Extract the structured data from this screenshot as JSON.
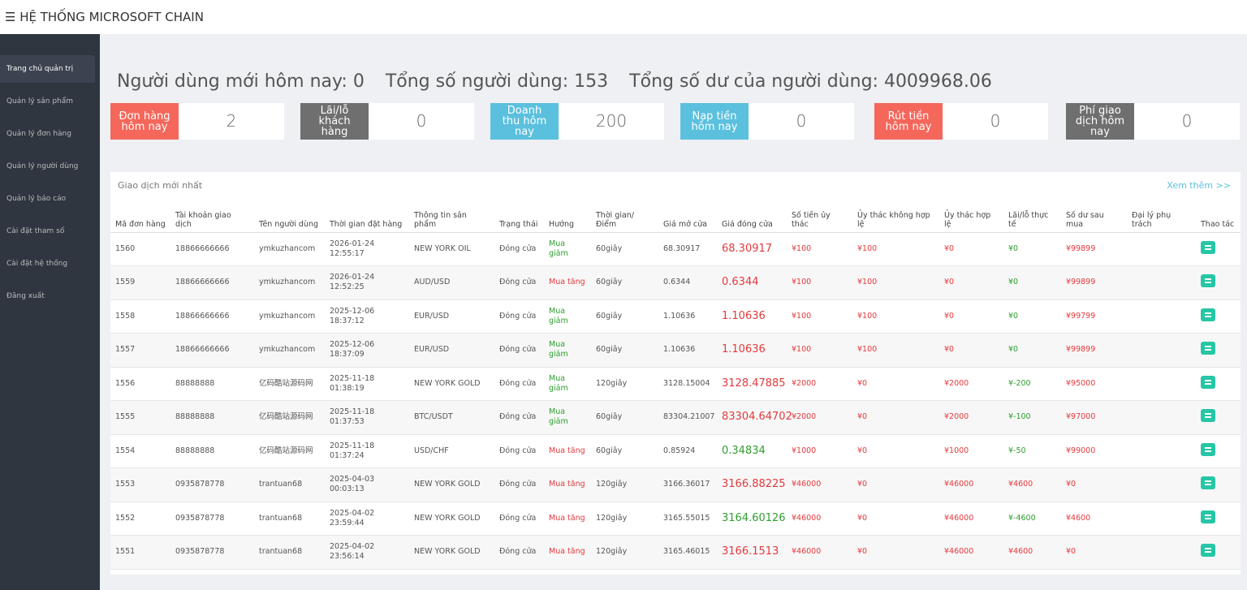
{
  "header": {
    "title": "HỆ THỐNG MICROSOFT CHAIN"
  },
  "sidebar": {
    "items": [
      "Trang chủ quản trị",
      "Quản lý sản phẩm",
      "Quản lý đơn hàng",
      "Quản lý người dùng",
      "Quản lý báo cáo",
      "Cài đặt tham số",
      "Cài đặt hệ thống",
      "Đăng xuất"
    ]
  },
  "stats": [
    "Người dùng mới hôm nay: 0",
    "Tổng số người dùng: 153",
    "Tổng số dư của người dùng: 4009968.06"
  ],
  "cards": [
    {
      "label": "Đơn hàng hôm nay",
      "value": "2",
      "color": "#f5675b"
    },
    {
      "label": "Lãi/lỗ khách hàng",
      "value": "0",
      "color": "#6f6f6f"
    },
    {
      "label": "Doanh thu hôm nay",
      "value": "200",
      "color": "#5bc0de"
    },
    {
      "label": "Nạp tiền hôm nay",
      "value": "0",
      "color": "#5bc0de"
    },
    {
      "label": "Rút tiền hôm nay",
      "value": "0",
      "color": "#f5675b"
    },
    {
      "label": "Phí giao dịch hôm nay",
      "value": "0",
      "color": "#6f6f6f"
    }
  ],
  "table": {
    "title": "Giao dịch mới nhất",
    "more": "Xem thêm >>",
    "headers": [
      "Mã đơn hàng",
      "Tài khoản giao dịch",
      "Tên người dùng",
      "Thời gian đặt hàng",
      "Thông tin sản phẩm",
      "Trạng thái",
      "Hướng",
      "Thời gian/ Điểm",
      "Giá mở cửa",
      "Giá đóng cửa",
      "Số tiền ủy thác",
      "Ủy thác không hợp lệ",
      "Ủy thác hợp lệ",
      "Lãi/lỗ thực tế",
      "Số dư sau mua",
      "Đại lý phụ trách",
      "Thao tác"
    ],
    "rows": [
      {
        "cells": [
          "1560",
          "18866666666",
          "ymkuzhancom",
          "2026-01-24 12:55:17",
          "NEW YORK OIL",
          "Đóng cửa",
          "Mua giảm",
          "60giây",
          "68.30917",
          "68.30917",
          "¥100",
          "¥100",
          "¥0",
          "¥0",
          "¥99899"
        ],
        "direction_color": "#2e9e2e",
        "close_color": "#e4393c",
        "pnl_color": "#2e9e2e"
      },
      {
        "cells": [
          "1559",
          "18866666666",
          "ymkuzhancom",
          "2026-01-24 12:52:25",
          "AUD/USD",
          "Đóng cửa",
          "Mua tăng",
          "60giây",
          "0.6344",
          "0.6344",
          "¥100",
          "¥100",
          "¥0",
          "¥0",
          "¥99899"
        ],
        "direction_color": "#e4393c",
        "close_color": "#e4393c",
        "pnl_color": "#2e9e2e"
      },
      {
        "cells": [
          "1558",
          "18866666666",
          "ymkuzhancom",
          "2025-12-06 18:37:12",
          "EUR/USD",
          "Đóng cửa",
          "Mua giảm",
          "60giây",
          "1.10636",
          "1.10636",
          "¥100",
          "¥100",
          "¥0",
          "¥0",
          "¥99799"
        ],
        "direction_color": "#2e9e2e",
        "close_color": "#e4393c",
        "pnl_color": "#2e9e2e"
      },
      {
        "cells": [
          "1557",
          "18866666666",
          "ymkuzhancom",
          "2025-12-06 18:37:09",
          "EUR/USD",
          "Đóng cửa",
          "Mua giảm",
          "60giây",
          "1.10636",
          "1.10636",
          "¥100",
          "¥100",
          "¥0",
          "¥0",
          "¥99899"
        ],
        "direction_color": "#2e9e2e",
        "close_color": "#e4393c",
        "pnl_color": "#2e9e2e"
      },
      {
        "cells": [
          "1556",
          "88888888",
          "亿码酷站源码网",
          "2025-11-18 01:38:19",
          "NEW YORK GOLD",
          "Đóng cửa",
          "Mua giảm",
          "120giây",
          "3128.15004",
          "3128.47885",
          "¥2000",
          "¥0",
          "¥2000",
          "¥-200",
          "¥95000"
        ],
        "direction_color": "#2e9e2e",
        "close_color": "#e4393c",
        "pnl_color": "#2e9e2e"
      },
      {
        "cells": [
          "1555",
          "88888888",
          "亿码酷站源码网",
          "2025-11-18 01:37:53",
          "BTC/USDT",
          "Đóng cửa",
          "Mua giảm",
          "60giây",
          "83304.21007",
          "83304.64702",
          "¥2000",
          "¥0",
          "¥2000",
          "¥-100",
          "¥97000"
        ],
        "direction_color": "#2e9e2e",
        "close_color": "#e4393c",
        "pnl_color": "#2e9e2e"
      },
      {
        "cells": [
          "1554",
          "88888888",
          "亿码酷站源码网",
          "2025-11-18 01:37:24",
          "USD/CHF",
          "Đóng cửa",
          "Mua tăng",
          "60giây",
          "0.85924",
          "0.34834",
          "¥1000",
          "¥0",
          "¥1000",
          "¥-50",
          "¥99000"
        ],
        "direction_color": "#e4393c",
        "close_color": "#2e9e2e",
        "pnl_color": "#2e9e2e"
      },
      {
        "cells": [
          "1553",
          "0935878778",
          "trantuan68",
          "2025-04-03 00:03:13",
          "NEW YORK GOLD",
          "Đóng cửa",
          "Mua tăng",
          "120giây",
          "3166.36017",
          "3166.88225",
          "¥46000",
          "¥0",
          "¥46000",
          "¥4600",
          "¥0"
        ],
        "direction_color": "#e4393c",
        "close_color": "#e4393c",
        "pnl_color": "#e4393c"
      },
      {
        "cells": [
          "1552",
          "0935878778",
          "trantuan68",
          "2025-04-02 23:59:44",
          "NEW YORK GOLD",
          "Đóng cửa",
          "Mua tăng",
          "120giây",
          "3165.55015",
          "3164.60126",
          "¥46000",
          "¥0",
          "¥46000",
          "¥-4600",
          "¥4600"
        ],
        "direction_color": "#e4393c",
        "close_color": "#2e9e2e",
        "pnl_color": "#2e9e2e"
      },
      {
        "cells": [
          "1551",
          "0935878778",
          "trantuan68",
          "2025-04-02 23:56:14",
          "NEW YORK GOLD",
          "Đóng cửa",
          "Mua tăng",
          "120giây",
          "3165.46015",
          "3166.1513",
          "¥46000",
          "¥0",
          "¥46000",
          "¥4600",
          "¥0"
        ],
        "direction_color": "#e4393c",
        "close_color": "#e4393c",
        "pnl_color": "#e4393c"
      }
    ]
  }
}
